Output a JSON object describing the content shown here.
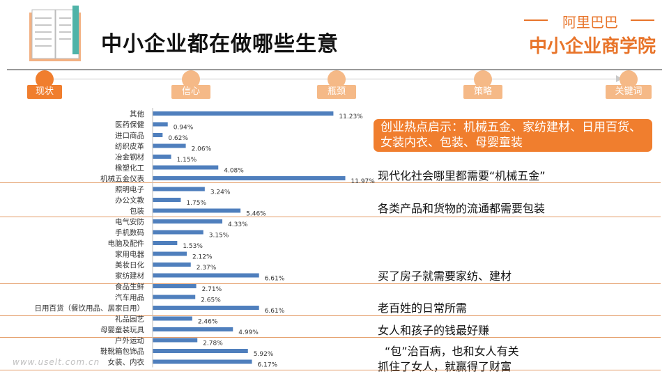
{
  "title": "中小企业都在做哪些生意",
  "brand": {
    "top": "阿里巴巴",
    "main": "中小企业商学院"
  },
  "timeline": [
    {
      "label": "现状",
      "active": true
    },
    {
      "label": "信心",
      "active": false
    },
    {
      "label": "瓶颈",
      "active": false
    },
    {
      "label": "策略",
      "active": false
    },
    {
      "label": "关键词",
      "active": false
    }
  ],
  "callout": "创业热点启示：机械五金、家纺建材、日用百货、女装内衣、包装、母婴童装",
  "notes": [
    "现代化社会哪里都需要“机械五金”",
    "各类产品和货物的流通都需要包装",
    "买了房子就需要家纺、建材",
    "老百姓的日常所需",
    "女人和孩子的钱最好赚",
    "“包”治百病，也和女人有关",
    "抓住了女人，就赢得了财富"
  ],
  "watermark": "www.uselt.com.cn",
  "colors": {
    "accent": "#f07e2e",
    "timeline_inactive": "#f5b987",
    "bar": "#4f7fbd"
  },
  "chart_data": {
    "type": "bar",
    "orientation": "horizontal",
    "title": "",
    "xlabel": "",
    "ylabel": "",
    "xlim": [
      0,
      12
    ],
    "categories": [
      "其他",
      "医药保健",
      "进口商品",
      "纺织皮革",
      "冶金钢材",
      "橡塑化工",
      "机械五金仪表",
      "照明电子",
      "办公文教",
      "包装",
      "电气安防",
      "手机数码",
      "电脑及配件",
      "家用电器",
      "美妆日化",
      "家纺建材",
      "食品生鲜",
      "汽车用品",
      "日用百货（餐饮用品、居家日用）",
      "礼品园艺",
      "母婴童装玩具",
      "户外运动",
      "鞋靴箱包饰品",
      "女装、内衣"
    ],
    "values": [
      11.23,
      0.94,
      0.62,
      2.06,
      1.15,
      4.08,
      11.97,
      3.24,
      1.75,
      5.46,
      4.33,
      3.15,
      1.53,
      2.12,
      2.37,
      6.61,
      2.71,
      2.65,
      6.61,
      2.46,
      4.99,
      2.78,
      5.92,
      6.17
    ],
    "value_labels": [
      "11.23%",
      "0.94%",
      "0.62%",
      "2.06%",
      "1.15%",
      "4.08%",
      "11.97%",
      "3.24%",
      "1.75%",
      "5.46%",
      "4.33%",
      "3.15%",
      "1.53%",
      "2.12%",
      "2.37%",
      "6.61%",
      "2.71%",
      "2.65%",
      "6.61%",
      "2.46%",
      "4.99%",
      "2.78%",
      "5.92%",
      "6.17%"
    ]
  }
}
